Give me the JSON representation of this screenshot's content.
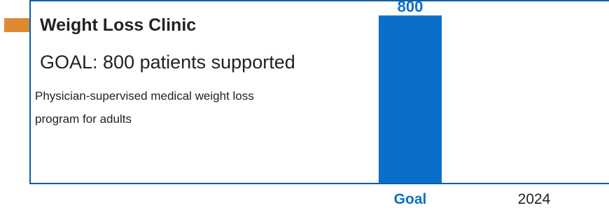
{
  "header": {
    "title": "Weight Loss Clinic",
    "goal_text": "GOAL: 800 patients supported",
    "description": "Physician-supervised medical weight loss program for adults"
  },
  "colors": {
    "accent": "#dd8a33",
    "frame": "#0b5fa8",
    "bar": "#0a6fc8",
    "text": "#222222"
  },
  "chart_data": {
    "type": "bar",
    "categories": [
      "Goal",
      "2024"
    ],
    "values": [
      800,
      null
    ],
    "data_labels": [
      "800",
      ""
    ],
    "ylim": [
      0,
      874
    ],
    "grid": false
  }
}
